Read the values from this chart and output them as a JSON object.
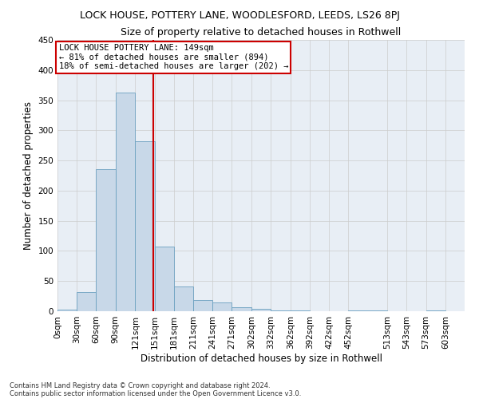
{
  "title1": "LOCK HOUSE, POTTERY LANE, WOODLESFORD, LEEDS, LS26 8PJ",
  "title2": "Size of property relative to detached houses in Rothwell",
  "xlabel": "Distribution of detached houses by size in Rothwell",
  "ylabel": "Number of detached properties",
  "footnote1": "Contains HM Land Registry data © Crown copyright and database right 2024.",
  "footnote2": "Contains public sector information licensed under the Open Government Licence v3.0.",
  "bin_labels": [
    "0sqm",
    "30sqm",
    "60sqm",
    "90sqm",
    "121sqm",
    "151sqm",
    "181sqm",
    "211sqm",
    "241sqm",
    "271sqm",
    "302sqm",
    "332sqm",
    "362sqm",
    "392sqm",
    "422sqm",
    "452sqm",
    "513sqm",
    "543sqm",
    "573sqm",
    "603sqm"
  ],
  "bin_edges": [
    0,
    30,
    60,
    90,
    121,
    151,
    181,
    211,
    241,
    271,
    302,
    332,
    362,
    392,
    422,
    452,
    513,
    543,
    573,
    603,
    633
  ],
  "bar_values": [
    3,
    32,
    236,
    362,
    282,
    107,
    41,
    19,
    14,
    6,
    4,
    1,
    1,
    0,
    0,
    1,
    0,
    0,
    1,
    0
  ],
  "bar_color": "#c8d8e8",
  "bar_edgecolor": "#6ba0c0",
  "vertical_line_x": 149,
  "annotation_line1": "LOCK HOUSE POTTERY LANE: 149sqm",
  "annotation_line2": "← 81% of detached houses are smaller (894)",
  "annotation_line3": "18% of semi-detached houses are larger (202) →",
  "annotation_box_color": "#cc0000",
  "ylim": [
    0,
    450
  ],
  "yticks": [
    0,
    50,
    100,
    150,
    200,
    250,
    300,
    350,
    400,
    450
  ],
  "grid_color": "#cccccc",
  "bg_color": "#e8eef5",
  "title1_fontsize": 9,
  "title2_fontsize": 9,
  "xlabel_fontsize": 8.5,
  "ylabel_fontsize": 8.5,
  "tick_fontsize": 7.5,
  "annot_fontsize": 7.5
}
